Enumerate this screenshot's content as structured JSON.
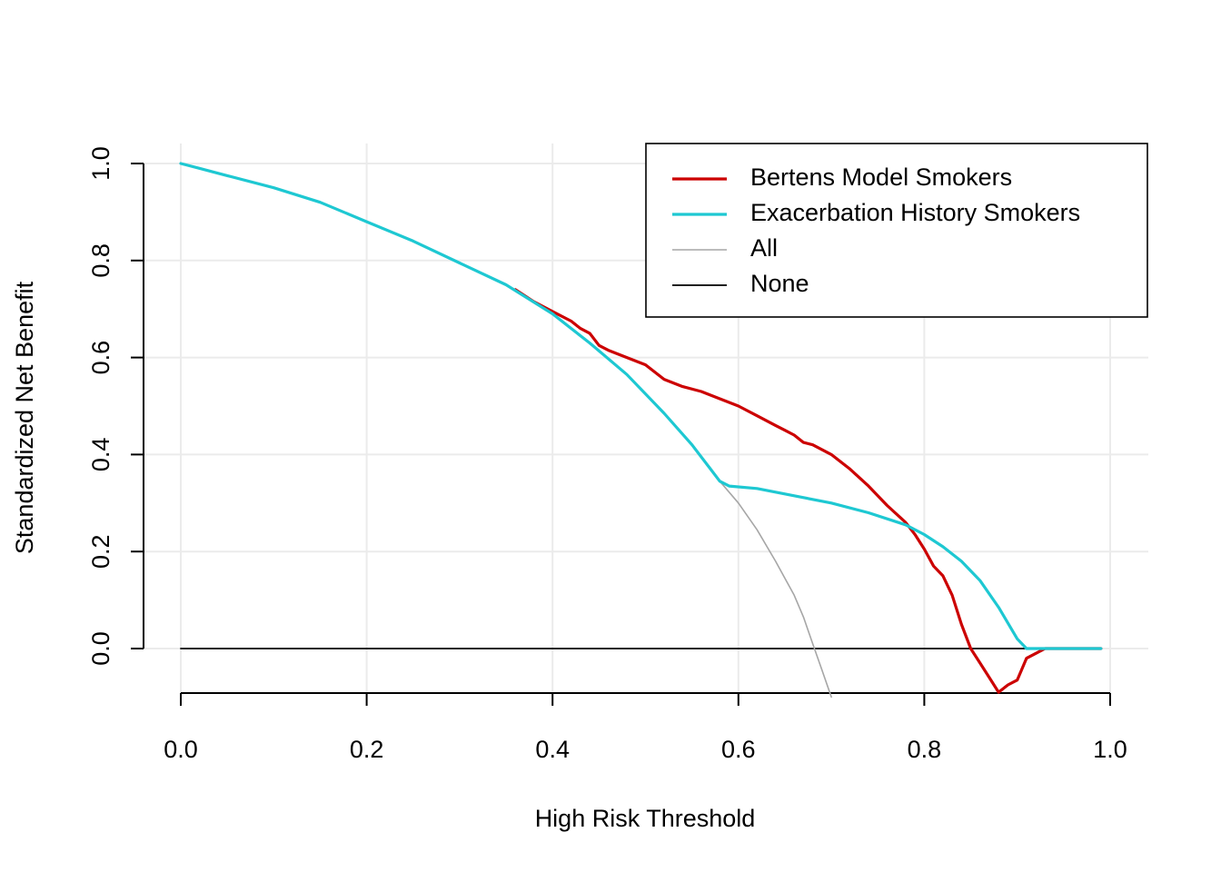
{
  "chart_data": {
    "type": "line",
    "title": "",
    "xlabel": "High Risk Threshold",
    "ylabel": "Standardized Net Benefit",
    "xlim": [
      0.0,
      1.0
    ],
    "ylim": [
      -0.1,
      1.0
    ],
    "x_ticks": [
      "0.0",
      "0.2",
      "0.4",
      "0.6",
      "0.8",
      "1.0"
    ],
    "y_ticks": [
      "0.0",
      "0.2",
      "0.4",
      "0.6",
      "0.8",
      "1.0"
    ],
    "grid": true,
    "legend_position": "top-right",
    "series": [
      {
        "name": "Bertens Model Smokers",
        "color": "#cc0000",
        "points": [
          [
            0.36,
            0.74
          ],
          [
            0.38,
            0.715
          ],
          [
            0.4,
            0.695
          ],
          [
            0.42,
            0.675
          ],
          [
            0.43,
            0.66
          ],
          [
            0.44,
            0.65
          ],
          [
            0.45,
            0.625
          ],
          [
            0.46,
            0.615
          ],
          [
            0.48,
            0.6
          ],
          [
            0.5,
            0.585
          ],
          [
            0.52,
            0.555
          ],
          [
            0.54,
            0.54
          ],
          [
            0.56,
            0.53
          ],
          [
            0.58,
            0.515
          ],
          [
            0.6,
            0.5
          ],
          [
            0.62,
            0.48
          ],
          [
            0.64,
            0.46
          ],
          [
            0.65,
            0.45
          ],
          [
            0.66,
            0.44
          ],
          [
            0.67,
            0.425
          ],
          [
            0.68,
            0.42
          ],
          [
            0.7,
            0.4
          ],
          [
            0.72,
            0.37
          ],
          [
            0.74,
            0.335
          ],
          [
            0.76,
            0.295
          ],
          [
            0.78,
            0.26
          ],
          [
            0.79,
            0.235
          ],
          [
            0.8,
            0.205
          ],
          [
            0.81,
            0.17
          ],
          [
            0.82,
            0.15
          ],
          [
            0.83,
            0.11
          ],
          [
            0.84,
            0.05
          ],
          [
            0.85,
            0.0
          ],
          [
            0.86,
            -0.03
          ],
          [
            0.87,
            -0.06
          ],
          [
            0.88,
            -0.09
          ],
          [
            0.89,
            -0.075
          ],
          [
            0.9,
            -0.065
          ],
          [
            0.91,
            -0.02
          ],
          [
            0.92,
            -0.01
          ],
          [
            0.93,
            0.0
          ],
          [
            0.96,
            0.0
          ],
          [
            0.99,
            0.0
          ]
        ]
      },
      {
        "name": "Exacerbation History Smokers",
        "color": "#1ec8d2",
        "points": [
          [
            0.0,
            1.0
          ],
          [
            0.02,
            0.99
          ],
          [
            0.05,
            0.975
          ],
          [
            0.1,
            0.95
          ],
          [
            0.15,
            0.92
          ],
          [
            0.2,
            0.88
          ],
          [
            0.25,
            0.84
          ],
          [
            0.3,
            0.795
          ],
          [
            0.35,
            0.75
          ],
          [
            0.4,
            0.69
          ],
          [
            0.44,
            0.63
          ],
          [
            0.48,
            0.565
          ],
          [
            0.52,
            0.485
          ],
          [
            0.55,
            0.42
          ],
          [
            0.57,
            0.37
          ],
          [
            0.58,
            0.345
          ],
          [
            0.59,
            0.335
          ],
          [
            0.62,
            0.33
          ],
          [
            0.66,
            0.315
          ],
          [
            0.7,
            0.3
          ],
          [
            0.74,
            0.28
          ],
          [
            0.78,
            0.255
          ],
          [
            0.8,
            0.235
          ],
          [
            0.82,
            0.21
          ],
          [
            0.84,
            0.18
          ],
          [
            0.86,
            0.14
          ],
          [
            0.88,
            0.085
          ],
          [
            0.9,
            0.02
          ],
          [
            0.91,
            0.0
          ],
          [
            0.95,
            0.0
          ],
          [
            0.99,
            0.0
          ]
        ]
      },
      {
        "name": "All",
        "color": "#a6a6a6",
        "points": [
          [
            0.58,
            0.345
          ],
          [
            0.6,
            0.3
          ],
          [
            0.62,
            0.245
          ],
          [
            0.64,
            0.18
          ],
          [
            0.66,
            0.11
          ],
          [
            0.67,
            0.065
          ],
          [
            0.68,
            0.01
          ],
          [
            0.69,
            -0.045
          ],
          [
            0.7,
            -0.1
          ]
        ]
      },
      {
        "name": "None",
        "color": "#000000",
        "points": [
          [
            0.0,
            0.0
          ],
          [
            0.99,
            0.0
          ]
        ]
      }
    ]
  }
}
